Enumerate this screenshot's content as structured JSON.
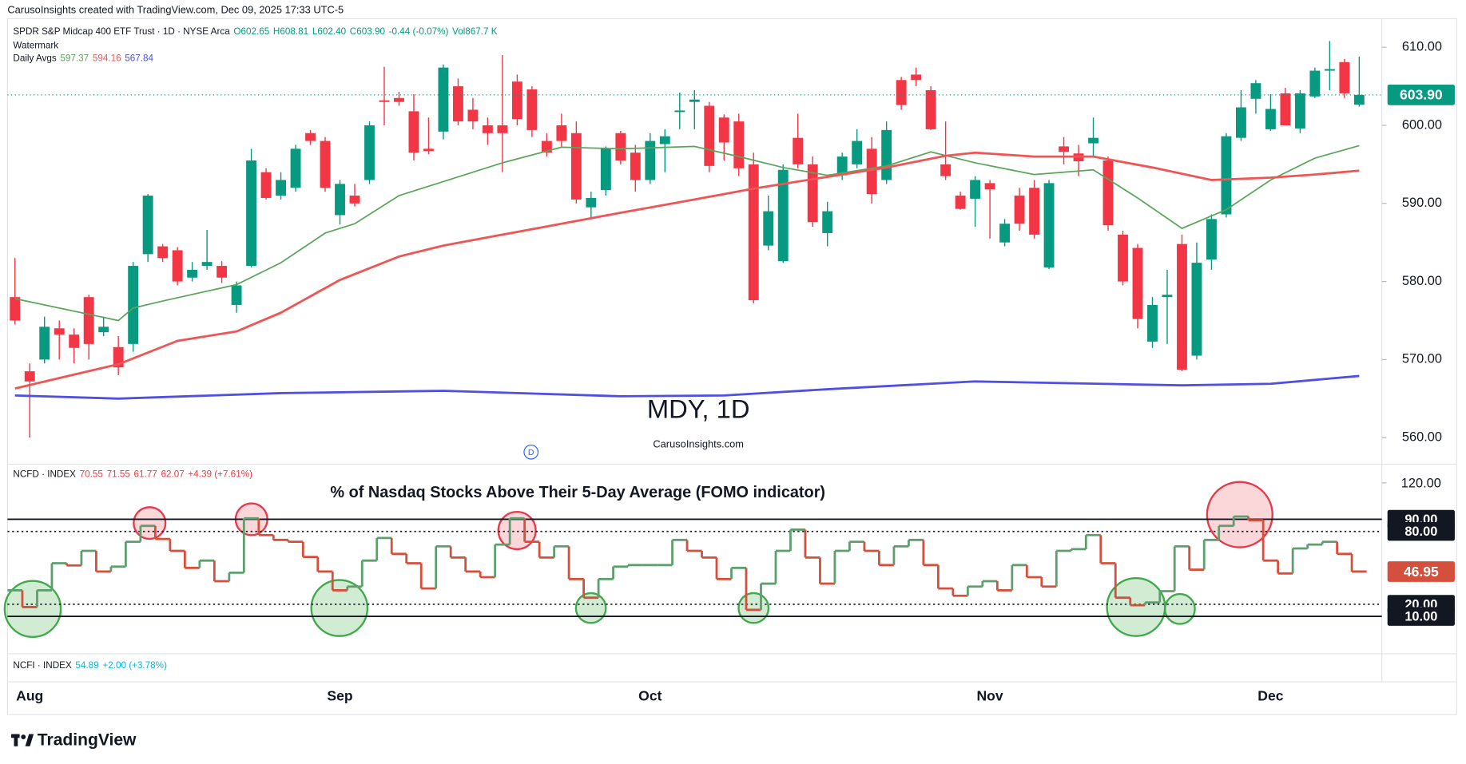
{
  "header": "CarusoInsights created with TradingView.com, Dec 09, 2025 17:33 UTC-5",
  "logo": "TradingView",
  "ncfi_legend": {
    "symbol": "NCFI · INDEX",
    "values": [
      "54.89",
      "+2.00 (+3.78%)"
    ],
    "color": "#00bcd4"
  },
  "chart_data": [
    {
      "type": "candlestick",
      "title": "MDY, 1D",
      "subtitle": "CarusoInsights.com",
      "event_marker": "D",
      "legend": {
        "symbol": "SPDR S&P Midcap 400 ETF Trust · 1D · NYSE Arca",
        "ohlc": [
          "O602.65",
          "H608.81",
          "L602.40",
          "C603.90",
          "-0.44 (-0.07%)",
          "Vol867.7 K"
        ],
        "ohlc_color": "#089981",
        "watermark": "Watermark",
        "avgs_label": "Daily Avgs",
        "avgs": [
          "597.37",
          "594.16",
          "567.84"
        ]
      },
      "categories": [
        null,
        "Aug",
        null,
        null,
        null,
        null,
        null,
        null,
        null,
        null,
        null,
        null,
        null,
        null,
        null,
        null,
        null,
        null,
        null,
        null,
        null,
        null,
        "Sep",
        null,
        null,
        null,
        null,
        null,
        null,
        null,
        null,
        null,
        null,
        null,
        null,
        null,
        null,
        null,
        null,
        null,
        null,
        null,
        null,
        "Oct",
        null,
        null,
        null,
        null,
        null,
        null,
        null,
        null,
        null,
        null,
        null,
        null,
        null,
        null,
        null,
        null,
        null,
        null,
        null,
        null,
        null,
        null,
        "Nov",
        null,
        null,
        null,
        null,
        null,
        null,
        null,
        null,
        null,
        null,
        null,
        null,
        null,
        null,
        null,
        null,
        null,
        null,
        "Dec",
        null,
        null,
        null,
        null,
        null,
        null
      ],
      "open": [
        578,
        568.5,
        570,
        574,
        573.2,
        578,
        573.5,
        571.6,
        572,
        583.5,
        584.5,
        584,
        580.5,
        582,
        582,
        577,
        582,
        594,
        591,
        592,
        599,
        598,
        588.5,
        591,
        593,
        603.2,
        603.5,
        601.8,
        597,
        599.2,
        605,
        602,
        600,
        600,
        605.6,
        604.6,
        598,
        600,
        599,
        589.5,
        591.7,
        599,
        596.5,
        593,
        597.6,
        601.7,
        603,
        602.5,
        601,
        600.5,
        595,
        584.6,
        582.6,
        598.4,
        595,
        586.2,
        593.6,
        595,
        597,
        593,
        605.8,
        606.5,
        604.5,
        595,
        591,
        590.6,
        592.6,
        585,
        591,
        592,
        581.8,
        597.3,
        596.4,
        597.7,
        595.5,
        586,
        584.3,
        572.3,
        578,
        584.8,
        570.5,
        582.8,
        588.6,
        598.4,
        603.4,
        599.5,
        604.1,
        599.6,
        603.7,
        607,
        608.1,
        602.65
      ],
      "high": [
        583,
        569.5,
        575.5,
        575,
        574,
        578.3,
        575.5,
        573,
        582.5,
        591.2,
        584.8,
        584.4,
        582.5,
        586.6,
        582.6,
        580,
        597,
        594.5,
        594,
        597.5,
        599.4,
        598.5,
        593,
        592.5,
        600.5,
        607.5,
        604.3,
        604,
        601,
        607.8,
        606,
        603.5,
        601,
        609,
        606.5,
        605,
        599,
        601.5,
        600.5,
        591.5,
        597.3,
        599.3,
        597.5,
        599,
        599.5,
        604.2,
        604.5,
        603,
        601.4,
        601.5,
        596.5,
        591,
        595,
        601.5,
        596,
        590.2,
        596.5,
        599.5,
        598.5,
        600.5,
        606.2,
        607.4,
        605,
        600.5,
        591.5,
        593.5,
        593,
        588,
        592,
        593,
        593,
        598.5,
        597.5,
        601,
        596,
        586.5,
        584.8,
        578,
        581.5,
        586,
        585,
        588.6,
        599,
        604.5,
        605.8,
        604,
        604.8,
        604.5,
        607.4,
        610.8,
        608.5,
        608.81
      ],
      "low": [
        574.5,
        560,
        569.5,
        570,
        569.5,
        570,
        573,
        568,
        571,
        582.5,
        582.5,
        579.5,
        580,
        581.5,
        579.8,
        576,
        581.8,
        590.5,
        590.5,
        591.5,
        597.5,
        591.5,
        587.3,
        589.6,
        592.5,
        600,
        602.5,
        595.5,
        596.3,
        598.2,
        600,
        599.5,
        597.5,
        594,
        600,
        598.5,
        596,
        597.2,
        590,
        588,
        591,
        595,
        591.5,
        592.5,
        594,
        599.5,
        599.5,
        594,
        595.5,
        593.5,
        577.2,
        584,
        582.4,
        594.5,
        587,
        584.5,
        593,
        594.5,
        590,
        592.5,
        602,
        605,
        599.4,
        593,
        589.2,
        587,
        585.5,
        584.5,
        586.5,
        585.5,
        581.6,
        595,
        593.5,
        596,
        586.5,
        579.5,
        574,
        571.5,
        572,
        568.5,
        570,
        581.5,
        588.2,
        598,
        601.5,
        599.3,
        600,
        599,
        603.5,
        604.5,
        603.5,
        602.4
      ],
      "close": [
        575,
        567.2,
        574.2,
        573.2,
        571.5,
        572,
        574.2,
        569,
        582,
        591,
        583,
        580,
        581.5,
        582.5,
        580.5,
        579.5,
        595.5,
        590.7,
        593,
        597,
        598,
        592,
        592.5,
        590,
        600,
        603,
        603,
        596.5,
        596.7,
        607.4,
        600.5,
        600.5,
        599,
        599,
        600.8,
        599.4,
        596.5,
        598,
        590.5,
        590.7,
        597,
        595.5,
        593,
        598,
        598.6,
        601.9,
        603.3,
        594.8,
        597.8,
        594.5,
        577.6,
        589,
        594.3,
        595,
        587.6,
        589,
        596,
        598,
        591.2,
        599.4,
        602.6,
        605.8,
        599.5,
        593.5,
        589.3,
        593,
        591.8,
        587.4,
        587.4,
        586,
        592.6,
        596.6,
        595.4,
        598.4,
        587.2,
        580,
        575.2,
        577,
        578.3,
        568.7,
        582.4,
        588,
        598.6,
        602.3,
        605.4,
        602.1,
        600,
        604.1,
        607,
        607.2,
        604.1,
        603.9
      ],
      "up_color": "#089981",
      "down_color": "#f23645",
      "last_label": "603.90",
      "series": [
        {
          "color": "#5aa55c",
          "x": [
            0,
            7,
            8,
            10,
            15,
            18,
            21,
            23,
            26,
            29,
            33,
            37,
            41,
            46,
            49,
            52,
            55,
            59,
            62,
            65,
            69,
            73,
            76,
            79,
            82,
            85,
            88,
            91
          ],
          "values": [
            577.8,
            575,
            576.6,
            577.5,
            579.6,
            582.4,
            586.2,
            587.4,
            591,
            592.8,
            595.2,
            597.2,
            597,
            597.3,
            596,
            594.6,
            593.6,
            594.8,
            596.6,
            595.2,
            593.7,
            594.3,
            590.7,
            586.8,
            589.2,
            593,
            595.8,
            597.4
          ]
        },
        {
          "color": "#f05555",
          "x": [
            0,
            7,
            11,
            15,
            18,
            22,
            26,
            29,
            33,
            37,
            41,
            46,
            50,
            54,
            59,
            63,
            65,
            69,
            73,
            77,
            81,
            85,
            88,
            91
          ],
          "values": [
            566.3,
            569.4,
            572.4,
            573.6,
            576,
            580.2,
            583.2,
            584.6,
            586,
            587.4,
            588.8,
            590.5,
            591.9,
            593.1,
            594.6,
            596.1,
            596.5,
            596,
            596,
            594.6,
            593,
            593.3,
            593.7,
            594.2
          ]
        },
        {
          "color": "#5050e0",
          "x": [
            0,
            7,
            18,
            29,
            41,
            48,
            55,
            65,
            79,
            85,
            91
          ],
          "values": [
            565.4,
            565,
            565.7,
            566,
            565.3,
            565.4,
            566.2,
            567.2,
            566.7,
            566.9,
            567.9
          ]
        }
      ],
      "ylim": [
        556.6,
        613.9
      ],
      "yticks": [
        {
          "value": 560,
          "label": "560.00"
        },
        {
          "value": 570,
          "label": "570.00"
        },
        {
          "value": 580,
          "label": "580.00"
        },
        {
          "value": 590,
          "label": "590.00"
        },
        {
          "value": 600,
          "label": "600.00"
        },
        {
          "value": 610,
          "label": "610.00"
        }
      ]
    },
    {
      "type": "step",
      "title": "% of Nasdaq Stocks Above Their 5-Day Average (FOMO indicator)",
      "legend": {
        "symbol": "NCFD · INDEX",
        "values": [
          "70.55",
          "71.55",
          "61.77",
          "62.07",
          "+4.39 (+7.61%)"
        ],
        "color": "#f23645"
      },
      "values": [
        31.5,
        17.7,
        31.5,
        53.8,
        52,
        64,
        47,
        51,
        71.5,
        84.6,
        73.8,
        64,
        50,
        56,
        39,
        46,
        90.8,
        77,
        73,
        71.5,
        59,
        47,
        31.5,
        34.6,
        56,
        74.6,
        61.5,
        53.8,
        33,
        67.7,
        58.5,
        47,
        42.3,
        69.2,
        90.8,
        71.5,
        58.5,
        67.7,
        40.8,
        25.4,
        40.8,
        51,
        52.3,
        52.3,
        52.3,
        73,
        64,
        58.5,
        40.8,
        50,
        15.4,
        37,
        64,
        81.5,
        58.5,
        37,
        64,
        71.5,
        64,
        52.3,
        67.7,
        73,
        52.3,
        33,
        27,
        34.6,
        39,
        31.5,
        52.3,
        42.3,
        34.6,
        64,
        65.4,
        77,
        53.8,
        25.4,
        19.2,
        21.5,
        30.8,
        67.7,
        48.5,
        73,
        84.6,
        92.3,
        89.2,
        56,
        45.4,
        66,
        69.2,
        71.5,
        61.5,
        46.95
      ],
      "up_color": "#5f9e6e",
      "down_color": "#d4503c",
      "last_label": "46.95",
      "ylim": [
        -20.8,
        133.1
      ],
      "yticks": [
        {
          "value": 120,
          "label": "120.00"
        },
        {
          "value": 90,
          "label": "90.00"
        },
        {
          "value": 80,
          "label": "80.00"
        },
        {
          "value": 20,
          "label": "20.00"
        },
        {
          "value": 10,
          "label": "10.00"
        }
      ],
      "tick_line_styles": [
        "none",
        "solid",
        "dotted",
        "dotted",
        "solid"
      ]
    }
  ]
}
